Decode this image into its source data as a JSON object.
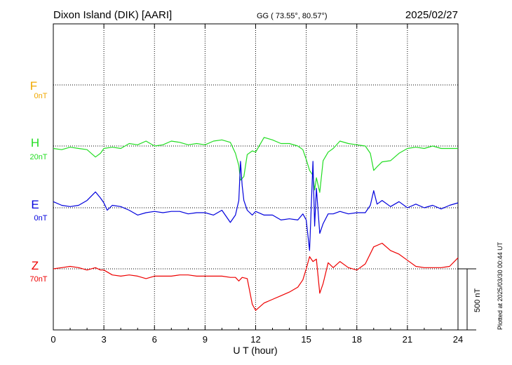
{
  "header": {
    "station": "Dixon Island (DIK)  [AARI]",
    "coords": "GG ( 73.55°,  80.57°)",
    "date": "2025/02/27"
  },
  "side_note": "Plotted at 2025/03/30 00:44 UT",
  "scale_bar": {
    "label": "500 nT",
    "value": 500
  },
  "chart_data": {
    "type": "line",
    "title": "Dixon Island (DIK)  [AARI]",
    "xlabel": "U T (hour)",
    "ylabel": "",
    "xlim": [
      0,
      24
    ],
    "x_ticks": [
      "0",
      "3",
      "6",
      "9",
      "12",
      "15",
      "18",
      "21",
      "24"
    ],
    "grid": true,
    "nT_per_scale_bar": 500,
    "series": [
      {
        "name": "F",
        "baseline_label": "0nT",
        "color": "#f0a800",
        "x": [],
        "values": []
      },
      {
        "name": "H",
        "baseline_label": "20nT",
        "color": "#22dd22",
        "x": [
          0,
          0.5,
          1,
          1.5,
          2,
          2.5,
          2.8,
          3,
          3.5,
          4,
          4.5,
          5,
          5.5,
          6,
          6.5,
          7,
          7.5,
          8,
          8.5,
          9,
          9.5,
          10,
          10.5,
          10.8,
          11,
          11.1,
          11.3,
          11.5,
          11.8,
          12,
          12.5,
          13,
          13.5,
          14,
          14.5,
          14.8,
          15,
          15.2,
          15.4,
          15.5,
          15.6,
          15.8,
          16,
          16.3,
          16.6,
          17,
          17.5,
          18,
          18.5,
          18.8,
          19,
          19.2,
          19.5,
          20,
          20.5,
          21,
          21.5,
          22,
          22.5,
          23,
          23.5,
          24
        ],
        "values": [
          -20,
          -30,
          -10,
          -20,
          -30,
          -90,
          -60,
          -20,
          -10,
          -20,
          20,
          10,
          40,
          0,
          10,
          40,
          30,
          10,
          20,
          10,
          40,
          50,
          30,
          -60,
          -160,
          -280,
          -250,
          -70,
          -40,
          -50,
          70,
          50,
          20,
          20,
          0,
          -30,
          -110,
          -200,
          -240,
          -360,
          -260,
          -380,
          -120,
          -50,
          -20,
          40,
          20,
          10,
          0,
          -60,
          -200,
          -170,
          -130,
          -120,
          -60,
          -20,
          -10,
          -20,
          0,
          -20,
          -20,
          -20
        ]
      },
      {
        "name": "E",
        "baseline_label": "0nT",
        "color": "#0000dd",
        "x": [
          0,
          0.5,
          1,
          1.5,
          2,
          2.5,
          2.8,
          3,
          3.2,
          3.5,
          4,
          4.5,
          5,
          5.5,
          6,
          6.5,
          7,
          7.5,
          8,
          8.5,
          9,
          9.5,
          10,
          10.5,
          10.8,
          11,
          11.1,
          11.2,
          11.3,
          11.5,
          11.8,
          12,
          12.5,
          13,
          13.5,
          14,
          14.5,
          14.8,
          15,
          15.2,
          15.4,
          15.5,
          15.6,
          15.8,
          16,
          16.3,
          16.6,
          17,
          17.5,
          18,
          18.5,
          18.8,
          19,
          19.2,
          19.5,
          20,
          20.5,
          21,
          21.5,
          22,
          22.5,
          23,
          23.5,
          24
        ],
        "values": [
          50,
          20,
          10,
          20,
          60,
          130,
          80,
          40,
          -20,
          20,
          10,
          -20,
          -60,
          -40,
          -30,
          -40,
          -30,
          -30,
          -50,
          -40,
          -40,
          -60,
          -20,
          -120,
          -60,
          60,
          380,
          180,
          60,
          -20,
          -60,
          -30,
          -60,
          -60,
          -100,
          -90,
          -100,
          -50,
          -100,
          -350,
          380,
          -150,
          160,
          -210,
          -130,
          -50,
          -50,
          -30,
          -50,
          -40,
          -40,
          20,
          140,
          30,
          60,
          10,
          50,
          0,
          30,
          0,
          20,
          -10,
          20,
          40
        ]
      },
      {
        "name": "Z",
        "baseline_label": "70nT",
        "color": "#ee0000",
        "x": [
          0,
          0.5,
          1,
          1.5,
          2,
          2.5,
          2.8,
          3,
          3.5,
          4,
          4.5,
          5,
          5.5,
          6,
          6.5,
          7,
          7.5,
          8,
          8.5,
          9,
          9.5,
          10,
          10.5,
          10.8,
          11,
          11.2,
          11.5,
          11.8,
          12,
          12.5,
          13,
          13.5,
          14,
          14.5,
          14.8,
          15,
          15.2,
          15.4,
          15.6,
          15.8,
          16,
          16.3,
          16.6,
          17,
          17.5,
          18,
          18.5,
          19,
          19.5,
          20,
          20.5,
          21,
          21.5,
          22,
          22.5,
          23,
          23.5,
          24
        ],
        "values": [
          0,
          10,
          20,
          10,
          -10,
          10,
          -10,
          -10,
          -50,
          -60,
          -50,
          -60,
          -80,
          -60,
          -60,
          -60,
          -50,
          -50,
          -60,
          -60,
          -60,
          -60,
          -70,
          -70,
          -100,
          -70,
          -80,
          -290,
          -340,
          -280,
          -250,
          -220,
          -190,
          -150,
          -90,
          0,
          100,
          60,
          80,
          -200,
          -120,
          50,
          10,
          60,
          10,
          -10,
          40,
          180,
          210,
          150,
          120,
          70,
          20,
          10,
          10,
          10,
          20,
          90
        ]
      }
    ]
  }
}
